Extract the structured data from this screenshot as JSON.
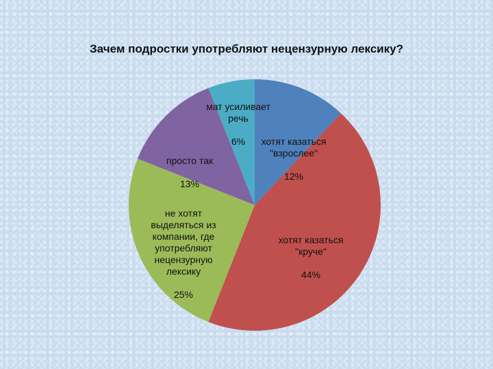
{
  "chart_data": {
    "type": "pie",
    "title": "Зачем подростки употребляют нецензурную лексику?",
    "slices": [
      {
        "label": "хотят казаться \"взрослее\"",
        "value": 12,
        "display": "12%",
        "color": "#4f81bd"
      },
      {
        "label": "хотят казаться \"круче\"",
        "value": 44,
        "display": "44%",
        "color": "#c0504d"
      },
      {
        "label": "не хотят выделяться из компании, где употребляют нецензурную лексику",
        "value": 25,
        "display": "25%",
        "color": "#9bbb59"
      },
      {
        "label": "просто так",
        "value": 13,
        "display": "13%",
        "color": "#8064a2"
      },
      {
        "label": "мат усиливает речь",
        "value": 6,
        "display": "6%",
        "color": "#4bacc6"
      }
    ],
    "legend": "none"
  }
}
